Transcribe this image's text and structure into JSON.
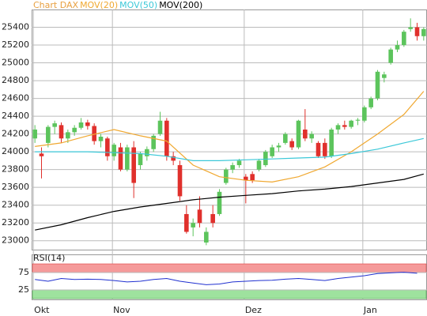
{
  "chart_data": [
    {
      "type": "candlestick",
      "title": "Chart DAX",
      "categories": [
        "Okt",
        null,
        null,
        null,
        null,
        null,
        null,
        null,
        null,
        null,
        null,
        null,
        "Nov",
        null,
        null,
        null,
        null,
        null,
        null,
        null,
        null,
        null,
        null,
        null,
        null,
        null,
        null,
        null,
        null,
        null,
        null,
        null,
        "Dez",
        null,
        null,
        null,
        null,
        null,
        null,
        null,
        null,
        null,
        null,
        null,
        null,
        null,
        null,
        null,
        null,
        null,
        "Jan",
        null,
        null,
        null,
        null,
        null,
        null,
        null,
        null,
        null
      ],
      "open": [
        24150,
        23980,
        24100,
        24280,
        24300,
        24150,
        24220,
        24270,
        24330,
        24290,
        24120,
        24150,
        23950,
        24050,
        23800,
        24050,
        23850,
        23950,
        24030,
        24200,
        24350,
        23950,
        23850,
        23300,
        23150,
        23350,
        22980,
        23300,
        23300,
        23650,
        23800,
        23850,
        23720,
        23750,
        23800,
        23850,
        23950,
        24050,
        24100,
        24120,
        24050,
        24250,
        24150,
        24100,
        24100,
        23950,
        24250,
        24300,
        24280,
        24350,
        24350,
        24500,
        24600,
        24830,
        25000,
        25150,
        25200,
        25380,
        25400,
        25300
      ],
      "high": [
        24300,
        24050,
        24300,
        24350,
        24330,
        24250,
        24300,
        24380,
        24360,
        24320,
        24200,
        24170,
        24100,
        24100,
        24080,
        24120,
        24000,
        24060,
        24200,
        24450,
        24380,
        24000,
        23900,
        23400,
        23250,
        23500,
        23150,
        23400,
        23580,
        23820,
        23880,
        23920,
        23750,
        23780,
        23920,
        24020,
        24080,
        24100,
        24220,
        24150,
        24360,
        24480,
        24230,
        24120,
        24150,
        24270,
        24320,
        24350,
        24360,
        24380,
        24520,
        24620,
        24920,
        24900,
        25170,
        25250,
        25370,
        25500,
        25450,
        25400
      ],
      "low": [
        24100,
        23700,
        24050,
        24200,
        24100,
        24100,
        24180,
        24250,
        24250,
        24080,
        24050,
        23900,
        23900,
        23780,
        23780,
        23480,
        23800,
        23900,
        24000,
        24180,
        23900,
        23850,
        23450,
        23080,
        23050,
        23150,
        22950,
        23150,
        23280,
        23630,
        23760,
        23820,
        23420,
        23650,
        23780,
        23830,
        23930,
        24000,
        24080,
        24020,
        24030,
        24120,
        24100,
        23930,
        23920,
        23930,
        24200,
        24250,
        24260,
        24300,
        24330,
        24480,
        24580,
        24780,
        24980,
        25120,
        25180,
        25350,
        25250,
        25250
      ],
      "close": [
        24250,
        23950,
        24280,
        24320,
        24150,
        24220,
        24270,
        24330,
        24290,
        24120,
        24170,
        23950,
        24080,
        23800,
        24050,
        23650,
        23980,
        24030,
        24180,
        24350,
        23950,
        23900,
        23500,
        23100,
        23200,
        23200,
        23100,
        23200,
        23550,
        23800,
        23850,
        23900,
        23680,
        23680,
        23900,
        24000,
        24050,
        24070,
        24200,
        24050,
        24350,
        24150,
        24200,
        23950,
        23950,
        24250,
        24300,
        24280,
        24350,
        24360,
        24500,
        24600,
        24900,
        24870,
        25150,
        25200,
        25350,
        25400,
        25300,
        25380
      ],
      "up_color": "#5cc45c",
      "down_color": "#e0302c",
      "series": [
        {
          "name": "MOV(20)",
          "color": "#f0a830",
          "x": [
            0,
            4,
            8,
            12,
            16,
            20,
            24,
            28,
            32,
            36,
            40,
            44,
            48,
            52,
            56,
            59
          ],
          "values": [
            24060,
            24100,
            24180,
            24250,
            24180,
            24120,
            23850,
            23720,
            23680,
            23660,
            23720,
            23830,
            24000,
            24200,
            24420,
            24680
          ]
        },
        {
          "name": "MOV(50)",
          "color": "#3cc8d8",
          "x": [
            0,
            4,
            8,
            12,
            16,
            20,
            24,
            28,
            32,
            36,
            40,
            44,
            48,
            52,
            56,
            59
          ],
          "values": [
            24000,
            24000,
            24000,
            23990,
            23980,
            23950,
            23900,
            23900,
            23910,
            23920,
            23930,
            23940,
            23980,
            24030,
            24100,
            24150
          ]
        },
        {
          "name": "MOV(200)",
          "color": "#000000",
          "x": [
            0,
            4,
            8,
            12,
            16,
            20,
            24,
            28,
            32,
            36,
            40,
            44,
            48,
            52,
            56,
            59
          ],
          "values": [
            23120,
            23180,
            23260,
            23330,
            23380,
            23420,
            23460,
            23490,
            23510,
            23530,
            23560,
            23580,
            23610,
            23650,
            23690,
            23750
          ]
        }
      ],
      "ylim": [
        22900,
        25600
      ],
      "yticks": [
        23000,
        23200,
        23400,
        23600,
        23800,
        24000,
        24200,
        24400,
        24600,
        24800,
        25000,
        25200,
        25400
      ],
      "grid": true
    },
    {
      "type": "line",
      "title": "RSI(14)",
      "color": "#2030d0",
      "x": [
        0,
        2,
        4,
        6,
        8,
        10,
        12,
        14,
        16,
        18,
        20,
        22,
        24,
        26,
        28,
        30,
        32,
        34,
        36,
        38,
        40,
        42,
        44,
        46,
        48,
        50,
        52,
        54,
        56,
        58
      ],
      "values": [
        55,
        50,
        58,
        55,
        56,
        55,
        52,
        48,
        50,
        55,
        58,
        50,
        45,
        40,
        42,
        48,
        50,
        52,
        53,
        56,
        58,
        55,
        52,
        58,
        62,
        66,
        72,
        74,
        76,
        73
      ],
      "ylim": [
        0,
        100
      ],
      "yticks": [
        25,
        75
      ],
      "bands": [
        {
          "from": 75,
          "to": 100,
          "color": "#f59a9a"
        },
        {
          "from": 0,
          "to": 25,
          "color": "#9ee29e"
        }
      ]
    }
  ]
}
